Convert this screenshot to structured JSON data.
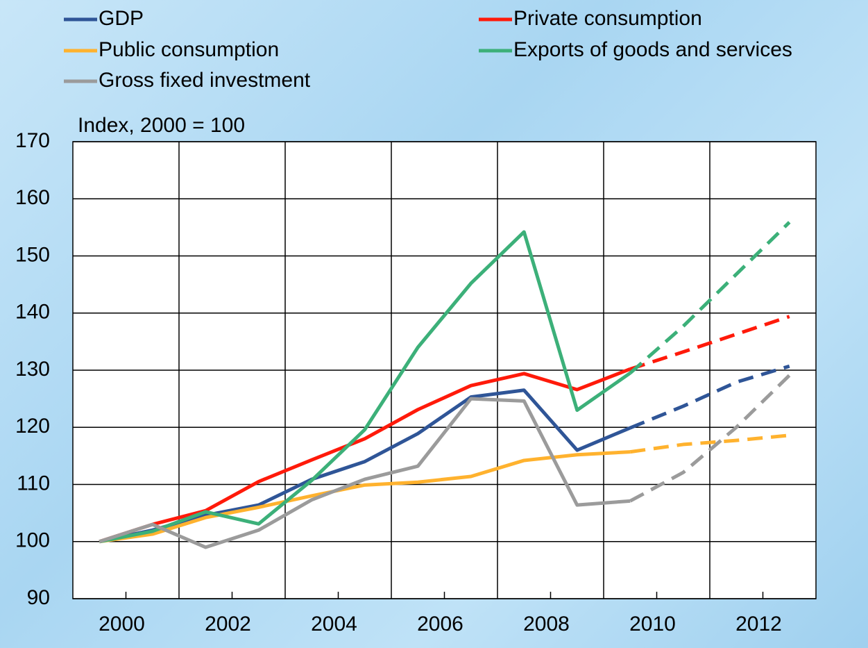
{
  "chart_data": {
    "type": "line",
    "y_label": "Index, 2000 = 100",
    "categories": [
      "2000",
      null,
      "2002",
      null,
      "2004",
      null,
      "2006",
      null,
      "2008",
      null,
      "2010",
      null,
      "2012",
      null
    ],
    "dashed_from": 10,
    "series": [
      {
        "name": "GDP",
        "color": "#2f5597",
        "values": [
          100,
          102,
          104.6,
          106.4,
          110.9,
          114,
          118.9,
          125.3,
          126.5,
          116,
          119.9,
          123.7,
          127.9,
          130.7
        ]
      },
      {
        "name": "Private consumption",
        "color": "#ff1a0a",
        "values": [
          100,
          103,
          105.4,
          110.5,
          114.3,
          118,
          123.1,
          127.3,
          129.4,
          126.6,
          130.2,
          133.2,
          136.3,
          139.4
        ]
      },
      {
        "name": "Public consumption",
        "color": "#ffb22e",
        "values": [
          100,
          101.3,
          104.2,
          106,
          108,
          109.9,
          110.4,
          111.4,
          114.2,
          115.2,
          115.7,
          117,
          117.7,
          118.6
        ]
      },
      {
        "name": "Exports of goods and services",
        "color": "#3cb079",
        "values": [
          100,
          101.8,
          105.2,
          103.1,
          110.7,
          119.6,
          134,
          145.2,
          154.2,
          123,
          129.5,
          137.7,
          146.8,
          155.9
        ]
      },
      {
        "name": "Gross fixed investment",
        "color": "#9b9b9b",
        "values": [
          100,
          103,
          99,
          102,
          107.3,
          110.9,
          113.2,
          125,
          124.6,
          106.4,
          107.1,
          112.1,
          120,
          129.1
        ]
      }
    ],
    "ylim": [
      90,
      170
    ],
    "yticks": [
      90,
      100,
      110,
      120,
      130,
      140,
      150,
      160,
      170
    ],
    "grid": true
  }
}
